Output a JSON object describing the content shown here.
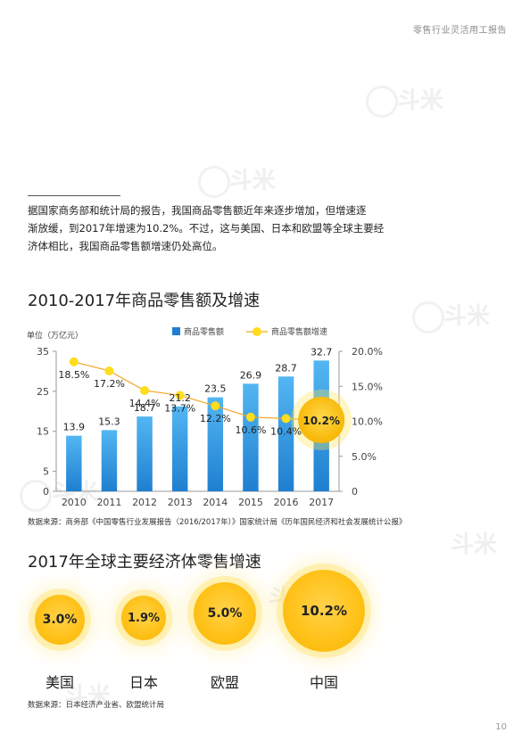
{
  "header": {
    "report_title": "零售行业灵活用工报告"
  },
  "intro": {
    "lines": [
      "据国家商务部和统计局的报告，我国商品零售额近年来逐步增加，但增速逐",
      "渐放缓，到2017年增速为10.2%。不过，这与美国、日本和欧盟等全球主要经",
      "济体相比，我国商品零售额增速仍处高位。"
    ]
  },
  "section1": {
    "title": "2010-2017年商品零售额及增速"
  },
  "chart_data": {
    "type": "bar",
    "categories": [
      "2010",
      "2011",
      "2012",
      "2013",
      "2014",
      "2015",
      "2016",
      "2017"
    ],
    "series": [
      {
        "name": "商品零售额",
        "type": "bar",
        "axis": "left",
        "values": [
          13.9,
          15.3,
          18.7,
          21.2,
          23.5,
          26.9,
          28.7,
          32.7
        ]
      },
      {
        "name": "商品零售额增速",
        "type": "line",
        "axis": "right",
        "values": [
          18.5,
          17.2,
          14.4,
          13.7,
          12.2,
          10.6,
          10.4,
          10.2
        ]
      }
    ],
    "value_labels": [
      "13.9",
      "15.3",
      "18.7",
      "21.2",
      "23.5",
      "26.9",
      "28.7",
      "32.7"
    ],
    "rate_labels": [
      "18.5%",
      "17.2%",
      "14.4%",
      "13.7%",
      "12.2%",
      "10.6%",
      "10.4%",
      "10.2%"
    ],
    "ylabel": "单位（万亿元）",
    "ylim": [
      0,
      35
    ],
    "yticks": [
      "0",
      "5",
      "15",
      "25",
      "35"
    ],
    "y2lim": [
      0,
      20
    ],
    "y2ticks": [
      "0",
      "5.0%",
      "10.0%",
      "15.0%",
      "20.0%"
    ],
    "legend_position": "top-center",
    "grid": false,
    "colors": {
      "bar_top": "#53b6f2",
      "bar_bottom": "#1f7fd0",
      "line": "#f2a623",
      "dot": "#ffdc1e",
      "highlight": "#ffc21a"
    }
  },
  "source1": {
    "text": "数据来源：商务部《中国零售行业发展报告（2016/2017年）》国家统计局《历年国民经济和社会发展统计公报》"
  },
  "section2": {
    "title": "2017年全球主要经济体零售增速"
  },
  "bubbles": [
    {
      "value": "3.0%",
      "country": "美国"
    },
    {
      "value": "1.9%",
      "country": "日本"
    },
    {
      "value": "5.0%",
      "country": "欧盟"
    },
    {
      "value": "10.2%",
      "country": "中国"
    }
  ],
  "source2": {
    "text": "数据来源：日本经济产业省、欧盟统计局"
  },
  "page": {
    "number": "10"
  },
  "watermark": {
    "text": "斗米"
  }
}
